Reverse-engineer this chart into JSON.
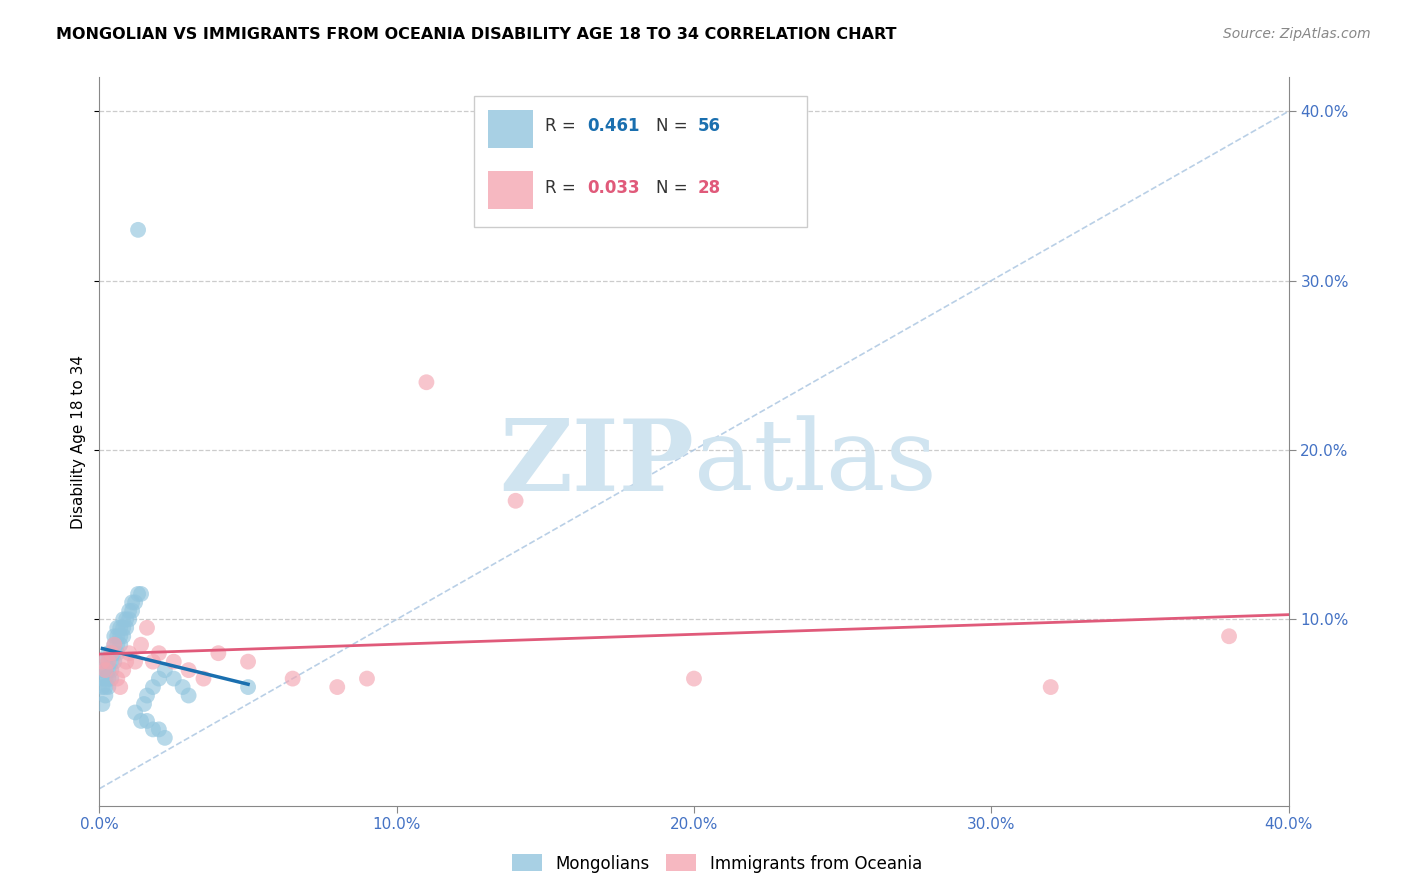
{
  "title": "MONGOLIAN VS IMMIGRANTS FROM OCEANIA DISABILITY AGE 18 TO 34 CORRELATION CHART",
  "source": "Source: ZipAtlas.com",
  "ylabel": "Disability Age 18 to 34",
  "xlim": [
    0.0,
    0.4
  ],
  "ylim": [
    -0.01,
    0.42
  ],
  "grid_yticks": [
    0.1,
    0.2,
    0.3,
    0.4
  ],
  "right_ytick_labels": [
    "10.0%",
    "20.0%",
    "30.0%",
    "40.0%"
  ],
  "xticks": [
    0.0,
    0.1,
    0.2,
    0.3,
    0.4
  ],
  "xtick_labels": [
    "0.0%",
    "10.0%",
    "20.0%",
    "30.0%",
    "40.0%"
  ],
  "legend_blue_r": "0.461",
  "legend_blue_n": "56",
  "legend_pink_r": "0.033",
  "legend_pink_n": "28",
  "blue_scatter_color": "#92c5de",
  "pink_scatter_color": "#f4a6b2",
  "blue_line_color": "#1a6faf",
  "pink_line_color": "#e05a7a",
  "diag_line_color": "#a8c4e0",
  "axis_tick_color": "#4472c4",
  "watermark_color": "#d0e4f0",
  "blue_scatter_x": [
    0.001,
    0.001,
    0.001,
    0.001,
    0.002,
    0.002,
    0.002,
    0.002,
    0.002,
    0.003,
    0.003,
    0.003,
    0.003,
    0.003,
    0.004,
    0.004,
    0.004,
    0.004,
    0.005,
    0.005,
    0.005,
    0.005,
    0.006,
    0.006,
    0.006,
    0.006,
    0.007,
    0.007,
    0.007,
    0.008,
    0.008,
    0.008,
    0.009,
    0.009,
    0.01,
    0.01,
    0.011,
    0.011,
    0.012,
    0.013,
    0.014,
    0.015,
    0.016,
    0.018,
    0.02,
    0.022,
    0.025,
    0.028,
    0.03,
    0.012,
    0.014,
    0.016,
    0.018,
    0.02,
    0.022,
    0.05
  ],
  "blue_scatter_y": [
    0.06,
    0.065,
    0.07,
    0.05,
    0.055,
    0.06,
    0.065,
    0.07,
    0.075,
    0.06,
    0.065,
    0.07,
    0.075,
    0.08,
    0.065,
    0.07,
    0.075,
    0.08,
    0.075,
    0.08,
    0.085,
    0.09,
    0.08,
    0.085,
    0.09,
    0.095,
    0.085,
    0.09,
    0.095,
    0.09,
    0.095,
    0.1,
    0.095,
    0.1,
    0.1,
    0.105,
    0.105,
    0.11,
    0.11,
    0.115,
    0.115,
    0.05,
    0.055,
    0.06,
    0.065,
    0.07,
    0.065,
    0.06,
    0.055,
    0.045,
    0.04,
    0.04,
    0.035,
    0.035,
    0.03,
    0.06
  ],
  "blue_scatter_high_x": [
    0.013
  ],
  "blue_scatter_high_y": [
    0.33
  ],
  "pink_scatter_x": [
    0.001,
    0.002,
    0.003,
    0.004,
    0.005,
    0.006,
    0.007,
    0.008,
    0.009,
    0.01,
    0.012,
    0.014,
    0.016,
    0.018,
    0.02,
    0.025,
    0.03,
    0.035,
    0.04,
    0.05,
    0.065,
    0.08,
    0.09,
    0.11,
    0.14,
    0.2,
    0.32,
    0.38
  ],
  "pink_scatter_y": [
    0.075,
    0.07,
    0.075,
    0.08,
    0.085,
    0.065,
    0.06,
    0.07,
    0.075,
    0.08,
    0.075,
    0.085,
    0.095,
    0.075,
    0.08,
    0.075,
    0.07,
    0.065,
    0.08,
    0.075,
    0.065,
    0.06,
    0.065,
    0.24,
    0.17,
    0.065,
    0.06,
    0.09
  ]
}
